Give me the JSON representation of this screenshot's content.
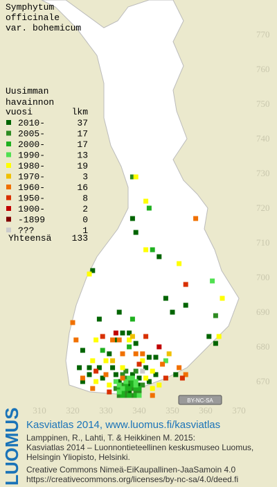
{
  "title": [
    "Symphytum",
    "officinale",
    "var. bohemicum"
  ],
  "legend_heading": [
    "Uusimman",
    "havainnon"
  ],
  "legend_columns": [
    "vuosi",
    "lkm"
  ],
  "legend": [
    {
      "label": "2010-",
      "count": 37,
      "color": "#006400",
      "squares": [
        {
          "e": 338,
          "n": 717
        },
        {
          "e": 339,
          "n": 713
        },
        {
          "e": 346,
          "n": 706
        },
        {
          "e": 326,
          "n": 702
        },
        {
          "e": 348,
          "n": 694
        },
        {
          "e": 354,
          "n": 692
        },
        {
          "e": 328,
          "n": 688
        },
        {
          "e": 334,
          "n": 690
        },
        {
          "e": 350,
          "n": 690
        },
        {
          "e": 335,
          "n": 684
        },
        {
          "e": 337,
          "n": 684
        },
        {
          "e": 333,
          "n": 682
        },
        {
          "e": 339,
          "n": 681
        },
        {
          "e": 361,
          "n": 683
        },
        {
          "e": 363,
          "n": 681
        },
        {
          "e": 323,
          "n": 679
        },
        {
          "e": 331,
          "n": 678
        },
        {
          "e": 343,
          "n": 677
        },
        {
          "e": 345,
          "n": 677
        },
        {
          "e": 322,
          "n": 674
        },
        {
          "e": 325,
          "n": 674
        },
        {
          "e": 328,
          "n": 674
        },
        {
          "e": 332,
          "n": 674
        },
        {
          "e": 342,
          "n": 674
        },
        {
          "e": 325,
          "n": 672
        },
        {
          "e": 329,
          "n": 671
        },
        {
          "e": 333,
          "n": 672
        },
        {
          "e": 338,
          "n": 672
        },
        {
          "e": 340,
          "n": 671
        },
        {
          "e": 345,
          "n": 672
        },
        {
          "e": 351,
          "n": 672
        },
        {
          "e": 323,
          "n": 670
        },
        {
          "e": 334,
          "n": 670
        },
        {
          "e": 337,
          "n": 669
        },
        {
          "e": 340,
          "n": 669
        },
        {
          "e": 343,
          "n": 670
        },
        {
          "e": 337,
          "n": 667
        }
      ]
    },
    {
      "label": "2005-",
      "count": 17,
      "color": "#2e8b22",
      "squares": [
        {
          "e": 338,
          "n": 729
        },
        {
          "e": 363,
          "n": 689
        },
        {
          "e": 336,
          "n": 667
        },
        {
          "e": 338,
          "n": 668
        },
        {
          "e": 335,
          "n": 669
        },
        {
          "e": 336,
          "n": 671
        },
        {
          "e": 339,
          "n": 667
        },
        {
          "e": 336,
          "n": 666
        },
        {
          "e": 338,
          "n": 666
        },
        {
          "e": 334,
          "n": 666
        },
        {
          "e": 340,
          "n": 667
        },
        {
          "e": 333,
          "n": 668
        },
        {
          "e": 341,
          "n": 669
        },
        {
          "e": 335,
          "n": 672
        },
        {
          "e": 339,
          "n": 673
        },
        {
          "e": 336,
          "n": 673
        },
        {
          "e": 337,
          "n": 670
        }
      ]
    },
    {
      "label": "2000-",
      "count": 17,
      "color": "#1fb01f",
      "squares": [
        {
          "e": 343,
          "n": 720
        },
        {
          "e": 344,
          "n": 708
        },
        {
          "e": 338,
          "n": 688
        },
        {
          "e": 329,
          "n": 679
        },
        {
          "e": 337,
          "n": 680
        },
        {
          "e": 336,
          "n": 668
        },
        {
          "e": 335,
          "n": 667
        },
        {
          "e": 339,
          "n": 668
        },
        {
          "e": 338,
          "n": 670
        },
        {
          "e": 334,
          "n": 668
        },
        {
          "e": 336,
          "n": 669
        },
        {
          "e": 337,
          "n": 666
        },
        {
          "e": 339,
          "n": 666
        },
        {
          "e": 335,
          "n": 666
        },
        {
          "e": 340,
          "n": 668
        },
        {
          "e": 338,
          "n": 669
        },
        {
          "e": 337,
          "n": 668
        }
      ]
    },
    {
      "label": "1990-",
      "count": 13,
      "color": "#50e050",
      "squares": [
        {
          "e": 362,
          "n": 699
        },
        {
          "e": 348,
          "n": 676
        },
        {
          "e": 335,
          "n": 671
        },
        {
          "e": 334,
          "n": 667
        },
        {
          "e": 339,
          "n": 670
        },
        {
          "e": 336,
          "n": 670
        },
        {
          "e": 338,
          "n": 671
        },
        {
          "e": 335,
          "n": 668
        },
        {
          "e": 340,
          "n": 666
        },
        {
          "e": 337,
          "n": 671
        },
        {
          "e": 333,
          "n": 670
        },
        {
          "e": 339,
          "n": 669
        },
        {
          "e": 334,
          "n": 669
        }
      ]
    },
    {
      "label": "1980-",
      "count": 19,
      "color": "#ffff00",
      "squares": [
        {
          "e": 339,
          "n": 729
        },
        {
          "e": 342,
          "n": 722
        },
        {
          "e": 342,
          "n": 708
        },
        {
          "e": 352,
          "n": 704
        },
        {
          "e": 325,
          "n": 701
        },
        {
          "e": 365,
          "n": 694
        },
        {
          "e": 364,
          "n": 683
        },
        {
          "e": 327,
          "n": 682
        },
        {
          "e": 337,
          "n": 682
        },
        {
          "e": 335,
          "n": 674
        },
        {
          "e": 327,
          "n": 670
        },
        {
          "e": 341,
          "n": 676
        },
        {
          "e": 330,
          "n": 676
        },
        {
          "e": 344,
          "n": 673
        },
        {
          "e": 331,
          "n": 669
        },
        {
          "e": 342,
          "n": 671
        },
        {
          "e": 326,
          "n": 676
        },
        {
          "e": 346,
          "n": 669
        },
        {
          "e": 344,
          "n": 668
        }
      ]
    },
    {
      "label": "1970-",
      "count": 3,
      "color": "#f0c000",
      "squares": [
        {
          "e": 338,
          "n": 683
        },
        {
          "e": 349,
          "n": 678
        },
        {
          "e": 332,
          "n": 676
        }
      ]
    },
    {
      "label": "1960-",
      "count": 16,
      "color": "#f07000",
      "squares": [
        {
          "e": 357,
          "n": 717
        },
        {
          "e": 320,
          "n": 687
        },
        {
          "e": 332,
          "n": 682
        },
        {
          "e": 334,
          "n": 682
        },
        {
          "e": 321,
          "n": 682
        },
        {
          "e": 335,
          "n": 678
        },
        {
          "e": 339,
          "n": 678
        },
        {
          "e": 341,
          "n": 678
        },
        {
          "e": 323,
          "n": 671
        },
        {
          "e": 335,
          "n": 671
        },
        {
          "e": 354,
          "n": 672
        },
        {
          "e": 330,
          "n": 672
        },
        {
          "e": 347,
          "n": 675
        },
        {
          "e": 326,
          "n": 668
        },
        {
          "e": 344,
          "n": 666
        },
        {
          "e": 352,
          "n": 674
        }
      ]
    },
    {
      "label": "1950-",
      "count": 8,
      "color": "#d83000",
      "squares": [
        {
          "e": 354,
          "n": 698
        },
        {
          "e": 342,
          "n": 683
        },
        {
          "e": 353,
          "n": 671
        },
        {
          "e": 329,
          "n": 683
        },
        {
          "e": 340,
          "n": 675
        },
        {
          "e": 327,
          "n": 673
        },
        {
          "e": 331,
          "n": 667
        },
        {
          "e": 348,
          "n": 671
        }
      ]
    },
    {
      "label": "1900-",
      "count": 2,
      "color": "#c00000",
      "squares": [
        {
          "e": 333,
          "n": 684
        },
        {
          "e": 346,
          "n": 680
        }
      ]
    },
    {
      "label": "-1899",
      "count": 0,
      "color": "#800000",
      "squares": []
    },
    {
      "label": "???",
      "count": 1,
      "color": "#cccccc",
      "squares": [
        {
          "e": 341,
          "n": 673
        }
      ]
    }
  ],
  "total_label": "Yhteensä",
  "total": 133,
  "northing_ticks": [
    770,
    760,
    750,
    740,
    730,
    720,
    710,
    700,
    690,
    680,
    670
  ],
  "easting_ticks": [
    310,
    320,
    330,
    340,
    350,
    360,
    370
  ],
  "license_badge": "BY-NC-SA",
  "footer": {
    "brand": "LUOMUS",
    "headline": "Kasviatlas 2014, www.luomus.fi/kasviatlas",
    "citation": [
      "Lamppinen, R., Lahti, T. & Heikkinen M. 2015:",
      "Kasviatlas 2014 – Luonnontieteellinen keskusmuseo Luomus,",
      "Helsingin Yliopisto, Helsinki."
    ],
    "license": [
      "Creative Commons Nimeä-EiKaupallinen-JaaSamoin 4.0",
      "https://creativecommons.org/licenses/by-nc-sa/4.0/deed.fi"
    ]
  }
}
